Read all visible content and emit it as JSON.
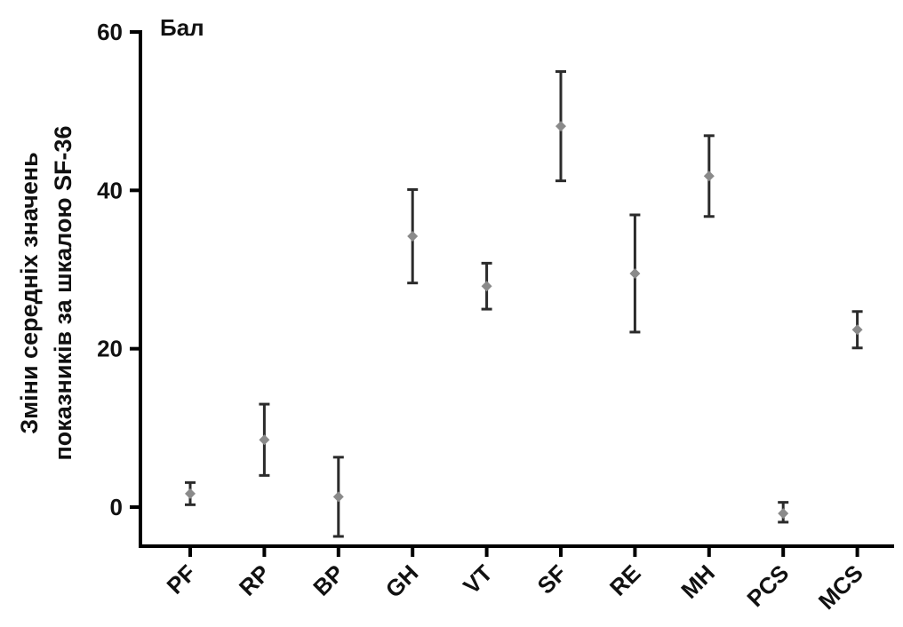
{
  "chart_data": {
    "type": "scatter",
    "unit_label": "Бал",
    "ylabel_line1": "Зміни середніх значень",
    "ylabel_line2": "показників за шкалою SF-36",
    "xlabel": "",
    "categories": [
      "PF",
      "RP",
      "BP",
      "GH",
      "VT",
      "SF",
      "RE",
      "MH",
      "PCS",
      "MCS"
    ],
    "series": [
      {
        "values": [
          1.7,
          8.5,
          1.3,
          34.2,
          27.9,
          48.1,
          29.5,
          41.8,
          -0.8,
          22.4
        ],
        "error_low": [
          0.3,
          4.0,
          -3.7,
          28.3,
          25.0,
          41.2,
          22.1,
          36.7,
          -1.9,
          20.1
        ],
        "error_high": [
          3.1,
          13.0,
          6.3,
          40.1,
          30.8,
          55.0,
          36.9,
          46.9,
          0.6,
          24.7
        ]
      }
    ],
    "ylim": [
      -5,
      60
    ],
    "yticks": [
      0,
      20,
      40,
      60
    ],
    "grid": false,
    "colors": {
      "marker": "#8a8a8a",
      "error_bar": "#2b2b2b",
      "axis": "#000000"
    }
  }
}
